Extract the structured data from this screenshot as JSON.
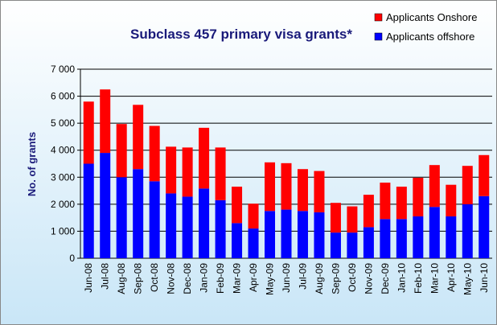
{
  "chart_data": {
    "type": "stacked_bar",
    "title": "Subclass 457 primary visa grants*",
    "y_label": "No. of grants",
    "categories": [
      "Jun-08",
      "Jul-08",
      "Aug-08",
      "Sep-08",
      "Oct-08",
      "Nov-08",
      "Dec-08",
      "Jan-09",
      "Feb-09",
      "Mar-09",
      "Apr-09",
      "May-09",
      "Jun-09",
      "Jul-09",
      "Aug-09",
      "Sep-09",
      "Oct-09",
      "Nov-09",
      "Dec-09",
      "Jan-10",
      "Feb-10",
      "Mar-10",
      "Apr-10",
      "May-10",
      "Jun-10"
    ],
    "series": [
      {
        "name": "Applicants offshore",
        "color": "#0000ff",
        "values": [
          3500,
          3900,
          3000,
          3300,
          2850,
          2400,
          2280,
          2580,
          2150,
          1300,
          1100,
          1750,
          1800,
          1750,
          1700,
          950,
          950,
          1150,
          1450,
          1450,
          1550,
          1900,
          1550,
          2000,
          2300
        ]
      },
      {
        "name": "Applicants Onshore",
        "color": "#ff0000",
        "values": [
          2300,
          2350,
          1970,
          2380,
          2050,
          1730,
          1820,
          2250,
          1950,
          1350,
          920,
          1800,
          1720,
          1550,
          1530,
          1100,
          970,
          1200,
          1350,
          1200,
          1430,
          1550,
          1170,
          1420,
          1520
        ]
      }
    ],
    "ylim": [
      0,
      7000
    ],
    "yticks": [
      0,
      {
        "value": 1000,
        "label": "1 000"
      },
      {
        "value": 2000,
        "label": "2 000"
      },
      {
        "value": 3000,
        "label": "3 000"
      },
      {
        "value": 4000,
        "label": "4 000"
      },
      {
        "value": 5000,
        "label": "5 000"
      },
      {
        "value": 6000,
        "label": "6 000"
      },
      {
        "value": 7000,
        "label": "7 000"
      }
    ],
    "grid": true,
    "legend": "top-right"
  }
}
